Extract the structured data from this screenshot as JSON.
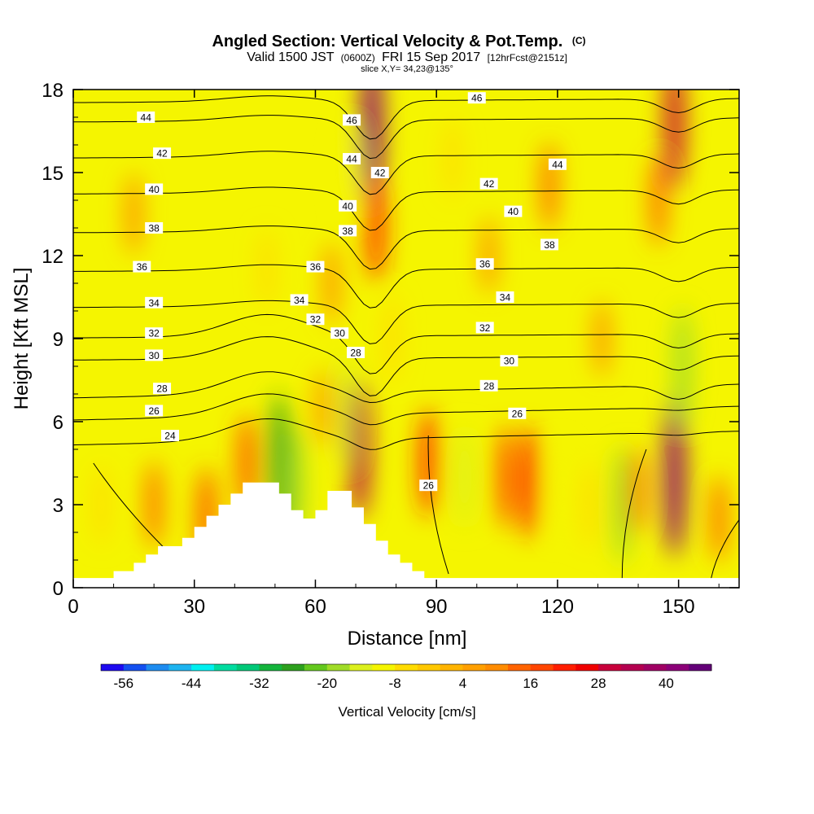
{
  "chart_data": {
    "type": "heatmap",
    "title": "Angled Section: Vertical Velocity & Pot.Temp.",
    "title_suffix": "(C)",
    "subtitle_main": "Valid 1500 JST",
    "subtitle_z": "(0600Z)",
    "subtitle_date": "FRI 15 Sep 2017",
    "subtitle_fcst": "[12hrFcst@2151z]",
    "slice_label": "slice X,Y= 34,23@135°",
    "xlabel": "Distance [nm]",
    "ylabel": "Height [Kft MSL]",
    "xlim": [
      0,
      165
    ],
    "ylim": [
      0,
      18
    ],
    "x_ticks": [
      "0",
      "30",
      "60",
      "90",
      "120",
      "150"
    ],
    "y_ticks": [
      "0",
      "3",
      "6",
      "9",
      "12",
      "15",
      "18"
    ],
    "colorbar": {
      "label": "Vertical Velocity [cm/s]",
      "tick_labels": [
        "-56",
        "-44",
        "-32",
        "-20",
        "-8",
        "4",
        "16",
        "28",
        "40"
      ],
      "colors": [
        "#1e0af0",
        "#1450f0",
        "#1e8cf0",
        "#1eb4f0",
        "#00f0f0",
        "#00dca0",
        "#00c878",
        "#14b43c",
        "#2da01e",
        "#64c81e",
        "#a0dc28",
        "#dcf01e",
        "#f5f500",
        "#ffdc00",
        "#ffc800",
        "#ffb400",
        "#ffa000",
        "#ff8c00",
        "#ff6400",
        "#ff4600",
        "#ff1e00",
        "#f00000",
        "#c8003c",
        "#b40050",
        "#a00064",
        "#8c0078",
        "#640078"
      ]
    },
    "velocity_cores": [
      {
        "x": 7,
        "z": 3.0,
        "value": -8
      },
      {
        "x": 15,
        "z": 13.5,
        "value": 8
      },
      {
        "x": 20,
        "z": 3.0,
        "value": 10
      },
      {
        "x": 33,
        "z": 2.5,
        "value": 16
      },
      {
        "x": 43,
        "z": 4.5,
        "value": 14
      },
      {
        "x": 48,
        "z": 11.5,
        "value": -8
      },
      {
        "x": 51,
        "z": 4.5,
        "value": -30
      },
      {
        "x": 55,
        "z": 3.7,
        "value": -22
      },
      {
        "x": 62,
        "z": 6.5,
        "value": 6
      },
      {
        "x": 64,
        "z": 11.0,
        "value": 8
      },
      {
        "x": 67,
        "z": 6.5,
        "value": -18
      },
      {
        "x": 68,
        "z": 15.0,
        "value": -12
      },
      {
        "x": 71,
        "z": 5.0,
        "value": 30
      },
      {
        "x": 74,
        "z": 16.5,
        "value": 40
      },
      {
        "x": 75,
        "z": 13.0,
        "value": 18
      },
      {
        "x": 79,
        "z": 9.0,
        "value": -10
      },
      {
        "x": 88,
        "z": 4.5,
        "value": 18
      },
      {
        "x": 94,
        "z": 15.5,
        "value": -8
      },
      {
        "x": 97,
        "z": 4.0,
        "value": -16
      },
      {
        "x": 103,
        "z": 12.0,
        "value": 6
      },
      {
        "x": 107,
        "z": 4.0,
        "value": 16
      },
      {
        "x": 113,
        "z": 3.8,
        "value": 20
      },
      {
        "x": 118,
        "z": 14.5,
        "value": 10
      },
      {
        "x": 121,
        "z": 3.5,
        "value": -14
      },
      {
        "x": 128,
        "z": 3.0,
        "value": -10
      },
      {
        "x": 131,
        "z": 9.0,
        "value": 6
      },
      {
        "x": 136,
        "z": 3.0,
        "value": -22
      },
      {
        "x": 140,
        "z": 3.5,
        "value": 10
      },
      {
        "x": 145,
        "z": 14.0,
        "value": 12
      },
      {
        "x": 149,
        "z": 16.8,
        "value": 28
      },
      {
        "x": 149,
        "z": 4.0,
        "value": 38
      },
      {
        "x": 151,
        "z": 8.0,
        "value": -22
      },
      {
        "x": 160,
        "z": 2.5,
        "value": 10
      }
    ],
    "terrain_profile": {
      "x": [
        10,
        15,
        18,
        21,
        27,
        30,
        33,
        36,
        39,
        42,
        48,
        51,
        54,
        57,
        60,
        63,
        66,
        69,
        72,
        75,
        78,
        81,
        84,
        87,
        90
      ],
      "height_kft": [
        0.6,
        0.9,
        1.2,
        1.5,
        1.8,
        2.2,
        2.6,
        3.0,
        3.4,
        3.8,
        3.8,
        3.4,
        2.8,
        2.5,
        2.8,
        3.5,
        3.5,
        2.9,
        2.3,
        1.7,
        1.2,
        0.9,
        0.6,
        0.3,
        0
      ]
    },
    "pot_temp_contours": [
      {
        "value": 24,
        "label_x": 24,
        "base_kft": 5.4
      },
      {
        "value": 26,
        "label_x": 20,
        "base_kft": 6.3
      },
      {
        "value": 28,
        "label_x": 22,
        "base_kft": 7.1
      },
      {
        "value": 30,
        "label_x": 20,
        "base_kft": 8.3
      },
      {
        "value": 32,
        "label_x": 20,
        "base_kft": 9.1
      },
      {
        "value": 34,
        "label_x": 20,
        "base_kft": 10.2
      },
      {
        "value": 36,
        "label_x": 17,
        "base_kft": 11.5
      },
      {
        "value": 38,
        "label_x": 20,
        "base_kft": 12.9
      },
      {
        "value": 40,
        "label_x": 20,
        "base_kft": 14.3
      },
      {
        "value": 42,
        "label_x": 22,
        "base_kft": 15.6
      },
      {
        "value": 44,
        "label_x": 18,
        "base_kft": 16.9
      },
      {
        "value": 46,
        "label_x": 100,
        "base_kft": 17.6
      }
    ],
    "lowlevel_contour_label": {
      "value": 26,
      "x": 88,
      "z": 3.7
    },
    "extra_contour_labels": [
      {
        "value": 46,
        "x": 69,
        "z": 16.9
      },
      {
        "value": 44,
        "x": 69,
        "z": 15.5
      },
      {
        "value": 42,
        "x": 76,
        "z": 15.0
      },
      {
        "value": 40,
        "x": 68,
        "z": 13.8
      },
      {
        "value": 38,
        "x": 68,
        "z": 12.9
      },
      {
        "value": 36,
        "x": 60,
        "z": 11.6
      },
      {
        "value": 34,
        "x": 56,
        "z": 10.4
      },
      {
        "value": 32,
        "x": 60,
        "z": 9.7
      },
      {
        "value": 30,
        "x": 66,
        "z": 9.2
      },
      {
        "value": 28,
        "x": 70,
        "z": 8.5
      },
      {
        "value": 26,
        "x": 110,
        "z": 6.3
      },
      {
        "value": 28,
        "x": 103,
        "z": 7.3
      },
      {
        "value": 30,
        "x": 108,
        "z": 8.2
      },
      {
        "value": 32,
        "x": 102,
        "z": 9.4
      },
      {
        "value": 34,
        "x": 107,
        "z": 10.5
      },
      {
        "value": 36,
        "x": 102,
        "z": 11.7
      },
      {
        "value": 38,
        "x": 118,
        "z": 12.4
      },
      {
        "value": 40,
        "x": 109,
        "z": 13.6
      },
      {
        "value": 42,
        "x": 103,
        "z": 14.6
      },
      {
        "value": 44,
        "x": 120,
        "z": 15.3
      }
    ]
  }
}
